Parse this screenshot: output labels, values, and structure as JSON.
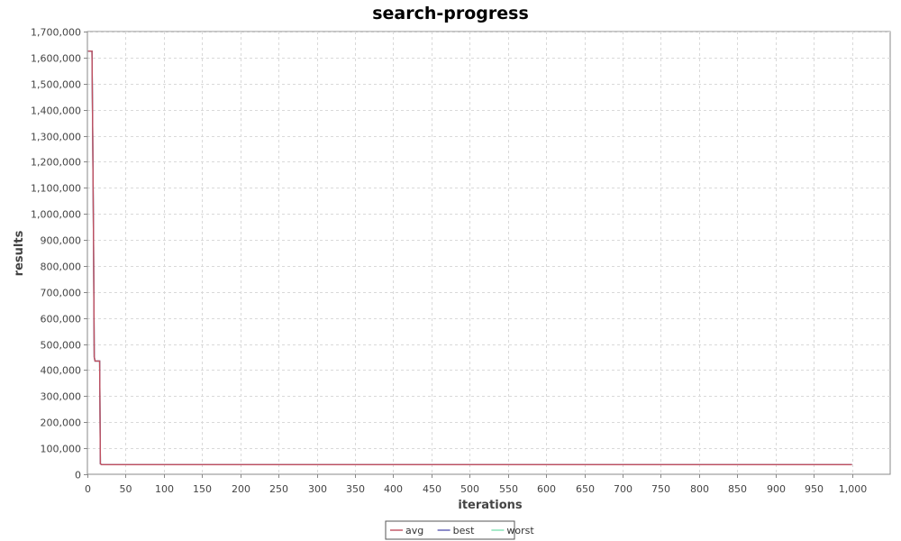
{
  "chart_data": {
    "type": "line",
    "title": "search-progress",
    "xlabel": "iterations",
    "ylabel": "results",
    "xlim": [
      0,
      1050
    ],
    "ylim": [
      0,
      1700000
    ],
    "x_ticks": [
      0,
      50,
      100,
      150,
      200,
      250,
      300,
      350,
      400,
      450,
      500,
      550,
      600,
      650,
      700,
      750,
      800,
      850,
      900,
      950,
      1000
    ],
    "y_ticks": [
      0,
      100000,
      200000,
      300000,
      400000,
      500000,
      600000,
      700000,
      800000,
      900000,
      1000000,
      1100000,
      1200000,
      1300000,
      1400000,
      1500000,
      1600000,
      1700000
    ],
    "grid": true,
    "legend_position": "bottom-center",
    "series": [
      {
        "name": "avg",
        "color": "#c0505f",
        "x": [
          1,
          6,
          6,
          7,
          8,
          9,
          10,
          11,
          12,
          13,
          14,
          15,
          16,
          17,
          18,
          19,
          20,
          1000
        ],
        "y": [
          1625000,
          1625000,
          1625000,
          1300000,
          900000,
          450000,
          435000,
          435000,
          435000,
          435000,
          435000,
          435000,
          435000,
          40000,
          38000,
          37000,
          37000,
          37000
        ]
      },
      {
        "name": "best",
        "color": "#5a5ab4",
        "x": [
          1,
          6,
          6,
          7,
          8,
          9,
          10,
          11,
          12,
          13,
          14,
          15,
          16,
          17,
          18,
          19,
          20,
          1000
        ],
        "y": [
          1625000,
          1625000,
          1625000,
          1300000,
          900000,
          450000,
          435000,
          435000,
          435000,
          435000,
          435000,
          435000,
          435000,
          40000,
          38000,
          37000,
          37000,
          37000
        ]
      },
      {
        "name": "worst",
        "color": "#7fe0b4",
        "x": [
          1,
          6,
          6,
          7,
          8,
          9,
          10,
          11,
          12,
          13,
          14,
          15,
          16,
          17,
          18,
          19,
          20,
          1000
        ],
        "y": [
          1625000,
          1625000,
          1625000,
          1300000,
          900000,
          450000,
          435000,
          435000,
          435000,
          435000,
          435000,
          435000,
          435000,
          40000,
          38000,
          37000,
          37000,
          37000
        ]
      }
    ]
  }
}
